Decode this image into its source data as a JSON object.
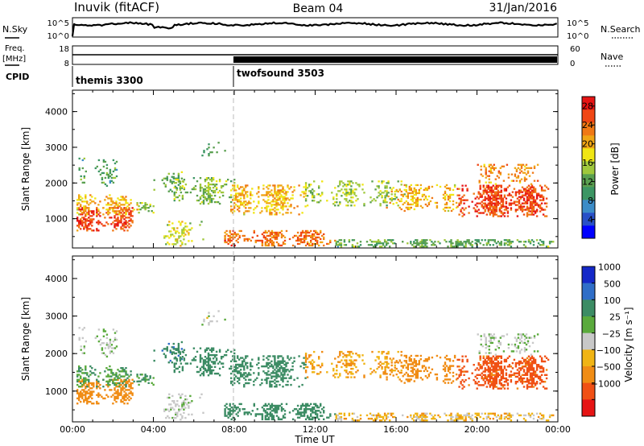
{
  "header": {
    "station": "Inuvik (fitACF)",
    "beam": "Beam 04",
    "date": "31/Jan/2016"
  },
  "top_panels": {
    "nsky": {
      "label": "N.Sky",
      "ticks": [
        "10^5",
        "10^0"
      ]
    },
    "nsearch": {
      "label": "N.Search",
      "ticks": [
        "10^5",
        "10^0"
      ]
    },
    "freq": {
      "label_line1": "Freq.",
      "label_line2": "[MHz]",
      "ticks": [
        "18",
        "8"
      ]
    },
    "nave": {
      "label": "Nave",
      "ticks": [
        "60",
        "0"
      ]
    },
    "cpid": {
      "label": "CPID",
      "modes": [
        {
          "name": "themis 3300",
          "start_h": 0.0
        },
        {
          "name": "twofsound 3503",
          "start_h": 8.0
        }
      ]
    }
  },
  "chart_data": [
    {
      "type": "heatmap",
      "name": "power",
      "ylabel": "Slant Range [km]",
      "xlabel": "",
      "ylim": [
        180,
        4600
      ],
      "yticks": [
        "1000",
        "2000",
        "3000",
        "4000"
      ],
      "x_ticks": [
        "00:00",
        "04:00",
        "08:00",
        "12:00",
        "16:00",
        "20:00",
        "00:00"
      ],
      "xlim_hours": [
        0,
        24
      ],
      "colorbar": {
        "label": "Power [dB]",
        "ticks": [
          "4",
          "8",
          "12",
          "16",
          "20",
          "24",
          "28"
        ],
        "range": [
          0,
          30
        ]
      }
    },
    {
      "type": "heatmap",
      "name": "velocity",
      "ylabel": "Slant Range [km]",
      "xlabel": "Time UT",
      "ylim": [
        180,
        4600
      ],
      "yticks": [
        "1000",
        "2000",
        "3000",
        "4000"
      ],
      "x_ticks": [
        "00:00",
        "04:00",
        "08:00",
        "12:00",
        "16:00",
        "20:00",
        "00:00"
      ],
      "xlim_hours": [
        0,
        24
      ],
      "colorbar": {
        "label": "Velocity [m s⁻¹]",
        "ticks": [
          "1000",
          "500",
          "100",
          "25",
          "−25",
          "−100",
          "−500",
          "−1000"
        ]
      }
    }
  ],
  "colors": {
    "power_scale": [
      "#0000ff",
      "#2850c8",
      "#3c8cc8",
      "#3c9664",
      "#5aa050",
      "#a0c83c",
      "#f0e614",
      "#f0a514",
      "#f07814",
      "#f04614",
      "#e61414"
    ],
    "velocity_scale": [
      "#1428c8",
      "#2f6ec8",
      "#3c8c64",
      "#5aaa3c",
      "#c8c8c8",
      "#f0b414",
      "#f08c14",
      "#f05014",
      "#e61414"
    ]
  },
  "scatter_regions": [
    {
      "h0": 0.2,
      "h1": 3.0,
      "r0": 650,
      "r1": 1300,
      "p": 26,
      "v": -150,
      "d": 0.85
    },
    {
      "h0": 0.2,
      "h1": 3.2,
      "r0": 1100,
      "r1": 1650,
      "p": 20,
      "v": 60,
      "d": 0.55
    },
    {
      "h0": 0.3,
      "h1": 2.2,
      "r0": 1900,
      "r1": 2700,
      "p": 11,
      "v": 20,
      "d": 0.3
    },
    {
      "h0": 3.0,
      "h1": 4.2,
      "r0": 1150,
      "r1": 1450,
      "p": 14,
      "v": 60,
      "d": 0.35
    },
    {
      "h0": 4.0,
      "h1": 5.5,
      "r0": 1700,
      "r1": 2300,
      "p": 12,
      "v": 250,
      "d": 0.3
    },
    {
      "h0": 4.5,
      "h1": 6.5,
      "r0": 220,
      "r1": 900,
      "p": 17,
      "v": 10,
      "d": 0.4
    },
    {
      "h0": 5.0,
      "h1": 8.0,
      "r0": 1400,
      "r1": 2150,
      "p": 14,
      "v": 180,
      "d": 0.6
    },
    {
      "h0": 6.3,
      "h1": 7.6,
      "r0": 2750,
      "r1": 3150,
      "p": 12,
      "v": 0,
      "d": 0.35
    },
    {
      "h0": 7.8,
      "h1": 11.5,
      "r0": 1100,
      "r1": 1950,
      "p": 20,
      "v": 150,
      "d": 0.7
    },
    {
      "h0": 7.5,
      "h1": 13.0,
      "r0": 230,
      "r1": 650,
      "p": 24,
      "v": 120,
      "d": 0.75
    },
    {
      "h0": 11.5,
      "h1": 16.5,
      "r0": 1350,
      "r1": 2050,
      "p": 15,
      "v": -60,
      "d": 0.45
    },
    {
      "h0": 13.0,
      "h1": 24.0,
      "r0": 200,
      "r1": 420,
      "p": 12,
      "v": -40,
      "d": 0.7
    },
    {
      "h0": 15.5,
      "h1": 19.0,
      "r0": 1200,
      "r1": 1950,
      "p": 20,
      "v": -150,
      "d": 0.5
    },
    {
      "h0": 19.0,
      "h1": 23.5,
      "r0": 1050,
      "r1": 1950,
      "p": 26,
      "v": -450,
      "d": 0.85
    },
    {
      "h0": 20.0,
      "h1": 23.0,
      "r0": 1950,
      "r1": 2500,
      "p": 22,
      "v": 20,
      "d": 0.35
    }
  ]
}
